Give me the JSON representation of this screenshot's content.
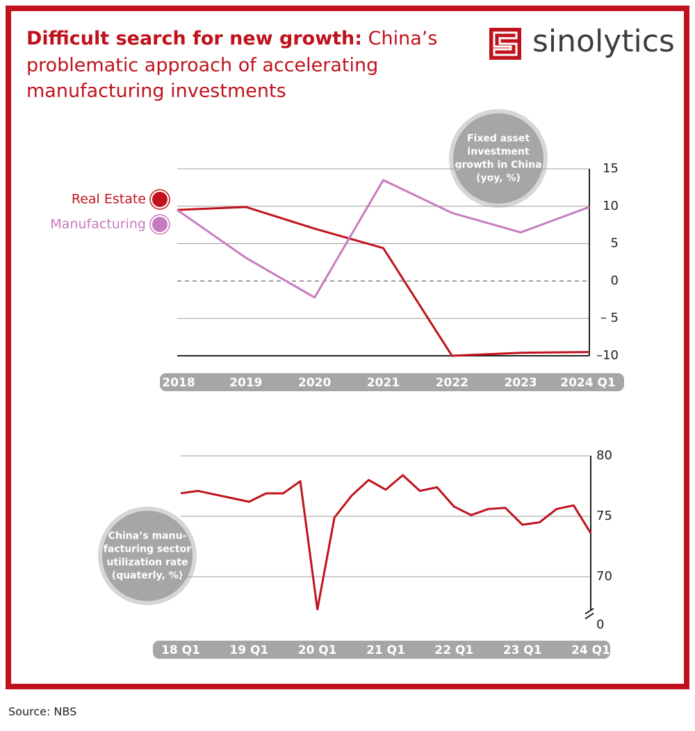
{
  "header": {
    "title_bold": "Difficult search for new growth:",
    "title_lines": [
      "China’s",
      "problematic approach of accelerating",
      "manufacturing investments"
    ],
    "logo": "sinolytics"
  },
  "chart_data": [
    {
      "type": "line",
      "annotation": [
        "Fixed asset",
        "investment",
        "growth in China",
        "(yoy, %)"
      ],
      "categories": [
        "2018",
        "2019",
        "2020",
        "2021",
        "2022",
        "2023",
        "2024 Q1"
      ],
      "series": [
        {
          "name": "Real Estate",
          "color": "#c0121c",
          "values": [
            9.5,
            9.9,
            7.0,
            4.4,
            -10.0,
            -9.6,
            -9.5
          ]
        },
        {
          "name": "Manufacturing",
          "color": "#c77bbf",
          "values": [
            9.5,
            3.1,
            -2.2,
            13.5,
            9.1,
            6.5,
            9.9
          ]
        }
      ],
      "ylim": [
        -10,
        15
      ],
      "yticks": [
        {
          "value": -10,
          "label": "–10"
        },
        {
          "value": -5,
          "label": "– 5"
        },
        0,
        5,
        10,
        15
      ],
      "grid": true,
      "zero_line": "dashed",
      "legend": "left"
    },
    {
      "type": "line",
      "annotation": [
        "China’s manu-",
        "facturing sector",
        "utilization rate",
        "(quaterly, %)"
      ],
      "categories": [
        "18 Q1",
        null,
        null,
        null,
        "19 Q1",
        null,
        null,
        null,
        "20 Q1",
        null,
        null,
        null,
        "21 Q1",
        null,
        null,
        null,
        "22 Q1",
        null,
        null,
        null,
        "23 Q1",
        null,
        null,
        null,
        "24 Q1"
      ],
      "series": [
        {
          "color": "#c0121c",
          "values": [
            76.9,
            77.1,
            76.8,
            76.5,
            76.2,
            76.9,
            76.9,
            77.9,
            67.3,
            74.9,
            76.7,
            78.0,
            77.2,
            78.4,
            77.1,
            77.4,
            75.8,
            75.1,
            75.6,
            75.7,
            74.3,
            74.5,
            75.6,
            75.9,
            73.6
          ]
        }
      ],
      "ylim": [
        66,
        80
      ],
      "yticks": [
        0,
        70,
        75,
        80
      ],
      "grid": true,
      "axis_break": true
    }
  ],
  "footer": {
    "source": "Source: NBS"
  }
}
